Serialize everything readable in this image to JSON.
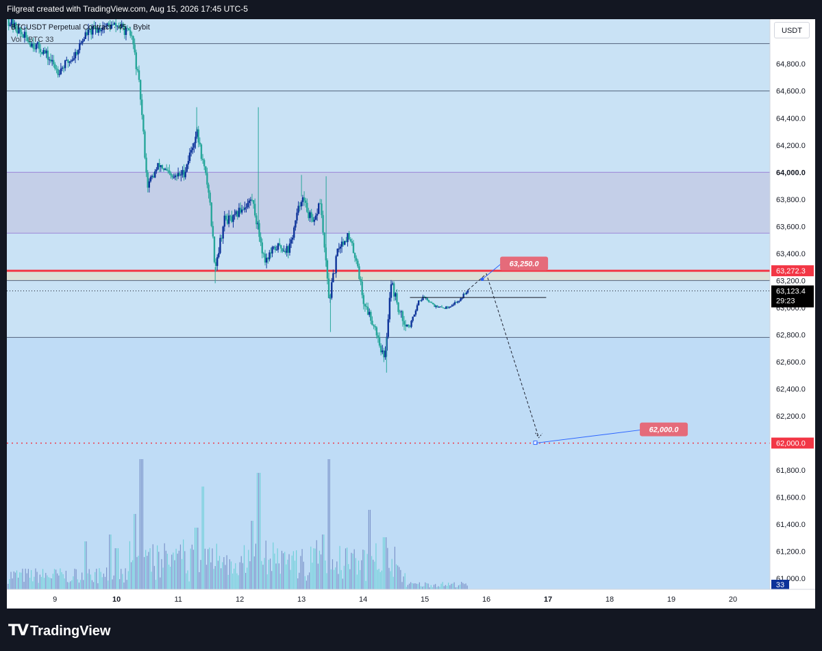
{
  "header": {
    "attribution": "Filgreat created with TradingView.com, Aug 15, 2026 17:45 UTC-5"
  },
  "legend": {
    "symbol": "BTCUSDT Perpetual Contract · 45 · Bybit",
    "volume": "Vol · BTC 33"
  },
  "currency_label": "USDT",
  "footer": {
    "brand": "TradingView"
  },
  "colors": {
    "background_blue": "#bfdcf6",
    "zone_purple": "#c4cfe8",
    "resistance_red": "#f23645",
    "candle_up": "#0c3299",
    "candle_down": "#26a69a",
    "label_red": "#e56b7a",
    "target_red": "#f23645"
  },
  "chart_data": {
    "type": "candlestick",
    "symbol": "BTCUSDT Perpetual Contract",
    "interval": "45",
    "exchange": "Bybit",
    "x_tick_labels": [
      "9",
      "10",
      "11",
      "12",
      "13",
      "14",
      "15",
      "16",
      "17",
      "18",
      "19",
      "20"
    ],
    "y_tick_labels": [
      "64,800.0",
      "64,600.0",
      "64,400.0",
      "64,200.0",
      "64,000.0",
      "63,800.0",
      "63,600.0",
      "63,400.0",
      "63,200.0",
      "63,000.0",
      "62,800.0",
      "62,600.0",
      "62,400.0",
      "62,200.0",
      "62,000.0",
      "61,800.0",
      "61,600.0",
      "61,400.0",
      "61,200.0",
      "61,000.0"
    ],
    "y_tick_values": [
      64800,
      64600,
      64400,
      64200,
      64000,
      63800,
      63600,
      63400,
      63200,
      63000,
      62800,
      62600,
      62400,
      62200,
      62000,
      61800,
      61600,
      61400,
      61200,
      61000
    ],
    "ylim": [
      60920,
      65130
    ],
    "xlim": [
      8.22,
      20.6
    ],
    "horizontal_levels": [
      64950,
      64600,
      64000,
      63550,
      63272.3,
      63200,
      62780
    ],
    "zone": {
      "top": 64000,
      "bottom": 63550
    },
    "last_price": "63,123.4",
    "last_price_value": 63123.4,
    "countdown": "29:23",
    "resistance_label": "63,272.3",
    "resistance_value": 63272.3,
    "target_axis_label": "62,000.0",
    "target_value": 62000,
    "annotations": [
      {
        "text": "63,250.0",
        "value": 63250,
        "x": 16.0
      },
      {
        "text": "62,000.0",
        "value": 62000,
        "x": 16.8
      }
    ],
    "projection": {
      "points": [
        [
          15.7,
          63130
        ],
        [
          16.0,
          63250
        ],
        [
          16.85,
          62040
        ]
      ]
    },
    "consolidation_line": {
      "x_start": 14.76,
      "x_end": 16.97,
      "value": 63075
    },
    "volume_last": "33",
    "anchor_points": [
      [
        8.22,
        65130
      ],
      [
        8.6,
        64960
      ],
      [
        8.8,
        64900
      ],
      [
        9.05,
        64750
      ],
      [
        9.3,
        64850
      ],
      [
        9.5,
        65020
      ],
      [
        9.8,
        65080
      ],
      [
        10.05,
        65080
      ],
      [
        10.25,
        65000
      ],
      [
        10.38,
        64600
      ],
      [
        10.5,
        63900
      ],
      [
        10.7,
        64060
      ],
      [
        10.9,
        63950
      ],
      [
        11.1,
        64000
      ],
      [
        11.3,
        64300
      ],
      [
        11.5,
        63850
      ],
      [
        11.6,
        63300
      ],
      [
        11.75,
        63650
      ],
      [
        11.9,
        63650
      ],
      [
        12.0,
        63720
      ],
      [
        12.2,
        63800
      ],
      [
        12.4,
        63350
      ],
      [
        12.6,
        63450
      ],
      [
        12.8,
        63430
      ],
      [
        13.0,
        63820
      ],
      [
        13.2,
        63600
      ],
      [
        13.3,
        63800
      ],
      [
        13.45,
        63050
      ],
      [
        13.6,
        63450
      ],
      [
        13.75,
        63530
      ],
      [
        13.9,
        63350
      ],
      [
        14.0,
        63050
      ],
      [
        14.2,
        62850
      ],
      [
        14.35,
        62600
      ],
      [
        14.45,
        63200
      ],
      [
        14.6,
        62950
      ],
      [
        14.75,
        62850
      ],
      [
        14.9,
        63050
      ],
      [
        15.0,
        63080
      ],
      [
        15.2,
        63000
      ],
      [
        15.35,
        63000
      ],
      [
        15.55,
        63050
      ],
      [
        15.7,
        63130
      ]
    ]
  }
}
